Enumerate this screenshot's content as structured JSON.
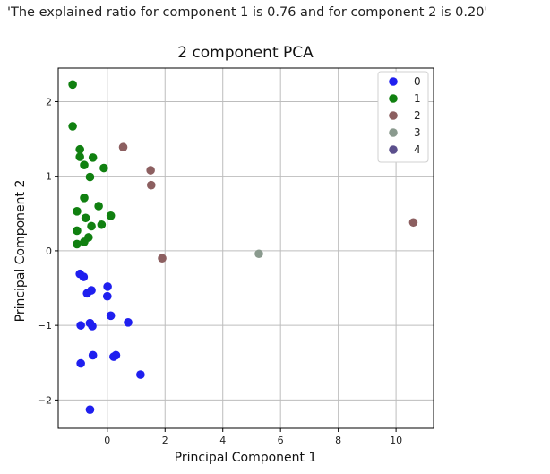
{
  "output_text": "'The explained ratio for component 1 is 0.76 and for component 2 is 0.20'",
  "chart_data": {
    "type": "scatter",
    "title": "2 component PCA",
    "xlabel": "Principal Component 1",
    "ylabel": "Principal Component 2",
    "xlim": [
      -1.7,
      11.3
    ],
    "ylim": [
      -2.38,
      2.45
    ],
    "xticks": [
      0,
      2,
      4,
      6,
      8,
      10
    ],
    "yticks": [
      -2,
      -1,
      0,
      1,
      2
    ],
    "grid": true,
    "legend_position": "top-right",
    "series": [
      {
        "name": "0",
        "color": "#1f1fef",
        "points": [
          [
            -0.95,
            -0.31
          ],
          [
            -0.82,
            -0.35
          ],
          [
            -0.55,
            -0.53
          ],
          [
            -0.7,
            -0.57
          ],
          [
            0.01,
            -0.48
          ],
          [
            0.0,
            -0.61
          ],
          [
            -0.6,
            -0.97
          ],
          [
            -0.92,
            -1.0
          ],
          [
            -0.52,
            -1.01
          ],
          [
            0.12,
            -0.87
          ],
          [
            0.72,
            -0.96
          ],
          [
            -0.5,
            -1.4
          ],
          [
            -0.92,
            -1.51
          ],
          [
            0.3,
            -1.4
          ],
          [
            0.22,
            -1.42
          ],
          [
            1.15,
            -1.66
          ],
          [
            -0.6,
            -2.13
          ]
        ]
      },
      {
        "name": "1",
        "color": "#108010",
        "points": [
          [
            -1.2,
            2.23
          ],
          [
            -1.2,
            1.67
          ],
          [
            -0.95,
            1.36
          ],
          [
            -0.95,
            1.26
          ],
          [
            -0.5,
            1.25
          ],
          [
            -0.8,
            1.15
          ],
          [
            -0.12,
            1.11
          ],
          [
            -0.6,
            0.99
          ],
          [
            -0.8,
            0.71
          ],
          [
            -0.3,
            0.6
          ],
          [
            -1.05,
            0.53
          ],
          [
            -0.75,
            0.44
          ],
          [
            0.12,
            0.47
          ],
          [
            -0.55,
            0.33
          ],
          [
            -0.2,
            0.35
          ],
          [
            -1.05,
            0.27
          ],
          [
            -0.65,
            0.18
          ],
          [
            -0.8,
            0.12
          ],
          [
            -1.05,
            0.09
          ]
        ]
      },
      {
        "name": "2",
        "color": "#8c5f60",
        "points": [
          [
            0.55,
            1.39
          ],
          [
            1.5,
            1.08
          ],
          [
            1.52,
            0.88
          ],
          [
            1.9,
            -0.1
          ],
          [
            10.6,
            0.38
          ]
        ]
      },
      {
        "name": "3",
        "color": "#8a9a8e",
        "points": [
          [
            5.25,
            -0.04
          ]
        ]
      },
      {
        "name": "4",
        "color": "#5b4f8c",
        "points": []
      }
    ]
  }
}
